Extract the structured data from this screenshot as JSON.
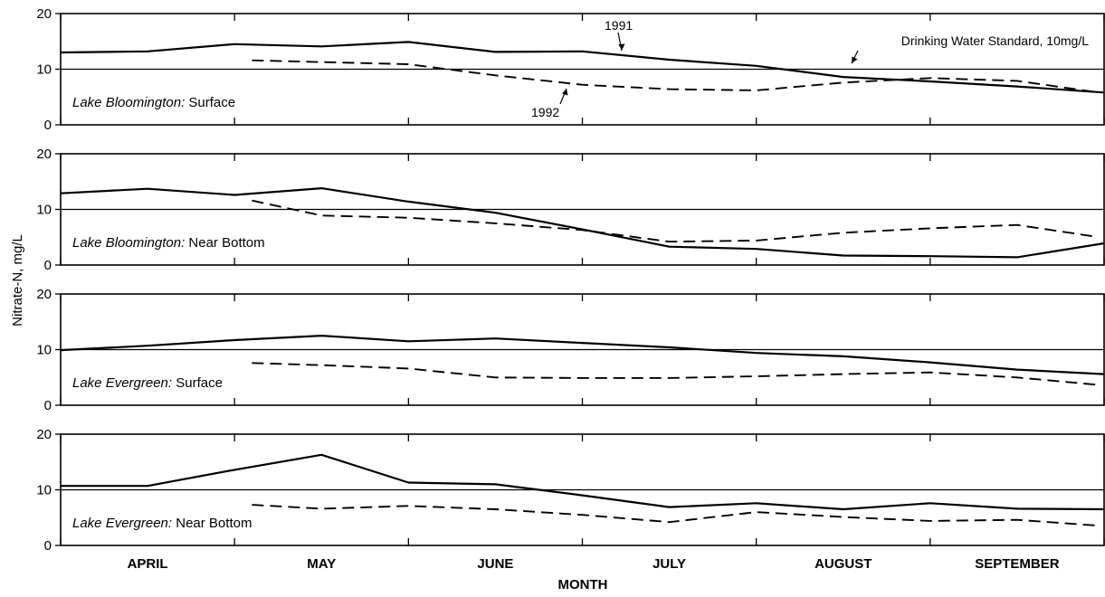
{
  "chart_data": {
    "type": "line",
    "ylabel": "Nitrate-N, mg/L",
    "xlabel": "MONTH",
    "months": [
      "APRIL",
      "MAY",
      "JUNE",
      "JULY",
      "AUGUST",
      "SEPTEMBER"
    ],
    "x_domain": [
      0,
      6
    ],
    "ylim": [
      0,
      20
    ],
    "yticks": [
      0,
      10,
      20
    ],
    "standard_value": 10,
    "standard_label": "Drinking Water Standard, 10mg/L",
    "series_names": [
      "1991",
      "1992"
    ],
    "panels": [
      {
        "lake": "Lake Bloomington:",
        "depth": " Surface",
        "series": [
          {
            "name": "1991",
            "style": "solid",
            "x": [
              0,
              0.5,
              1,
              1.5,
              2,
              2.5,
              3,
              3.5,
              4,
              4.5,
              5,
              5.5,
              6
            ],
            "y": [
              13,
              13.2,
              14.5,
              14.1,
              14.9,
              13.1,
              13.2,
              11.7,
              10.6,
              8.6,
              7.8,
              6.9,
              5.8
            ]
          },
          {
            "name": "1992",
            "style": "dashed",
            "x": [
              1.1,
              2,
              2.5,
              3,
              3.5,
              4,
              4.5,
              5,
              5.5,
              5.95
            ],
            "y": [
              11.6,
              10.9,
              8.9,
              7.2,
              6.4,
              6.2,
              7.6,
              8.4,
              7.9,
              5.9
            ]
          }
        ]
      },
      {
        "lake": "Lake Bloomington:",
        "depth": " Near Bottom",
        "series": [
          {
            "name": "1991",
            "style": "solid",
            "x": [
              0,
              0.5,
              1,
              1.5,
              2,
              2.5,
              3,
              3.5,
              4,
              4.5,
              5,
              5.5,
              6
            ],
            "y": [
              12.9,
              13.7,
              12.6,
              13.8,
              11.4,
              9.4,
              6.4,
              3.3,
              2.9,
              1.7,
              1.6,
              1.4,
              3.9
            ]
          },
          {
            "name": "1992",
            "style": "dashed",
            "x": [
              1.1,
              1.5,
              2,
              2.5,
              3,
              3.5,
              4,
              4.5,
              5,
              5.5,
              5.95
            ],
            "y": [
              11.6,
              8.9,
              8.5,
              7.5,
              6.3,
              4.2,
              4.4,
              5.8,
              6.6,
              7.2,
              5.1
            ]
          }
        ]
      },
      {
        "lake": "Lake Evergreen:",
        "depth": " Surface",
        "series": [
          {
            "name": "1991",
            "style": "solid",
            "x": [
              0,
              0.5,
              1,
              1.5,
              2,
              2.5,
              3,
              3.5,
              4,
              4.5,
              5,
              5.5,
              6
            ],
            "y": [
              9.9,
              10.7,
              11.7,
              12.5,
              11.5,
              12,
              11.2,
              10.4,
              9.4,
              8.8,
              7.7,
              6.4,
              5.6
            ]
          },
          {
            "name": "1992",
            "style": "dashed",
            "x": [
              1.1,
              1.5,
              2,
              2.5,
              3,
              3.5,
              4,
              4.5,
              5,
              5.5,
              5.95
            ],
            "y": [
              7.6,
              7.2,
              6.6,
              5,
              4.9,
              4.9,
              5.2,
              5.6,
              5.9,
              5,
              3.7
            ]
          }
        ]
      },
      {
        "lake": "Lake Evergreen:",
        "depth": " Near Bottom",
        "series": [
          {
            "name": "1991",
            "style": "solid",
            "x": [
              0,
              0.5,
              1,
              1.5,
              2,
              2.5,
              3,
              3.5,
              4,
              4.5,
              5,
              5.5,
              6
            ],
            "y": [
              10.7,
              10.7,
              13.6,
              16.3,
              11.3,
              11,
              9,
              6.9,
              7.6,
              6.5,
              7.6,
              6.6,
              6.5
            ]
          },
          {
            "name": "1992",
            "style": "dashed",
            "x": [
              1.1,
              1.5,
              2,
              2.5,
              3,
              3.5,
              4,
              4.5,
              5,
              5.5,
              5.95
            ],
            "y": [
              7.3,
              6.6,
              7.1,
              6.5,
              5.5,
              4.2,
              6,
              5.1,
              4.4,
              4.6,
              3.6
            ]
          }
        ]
      }
    ]
  }
}
